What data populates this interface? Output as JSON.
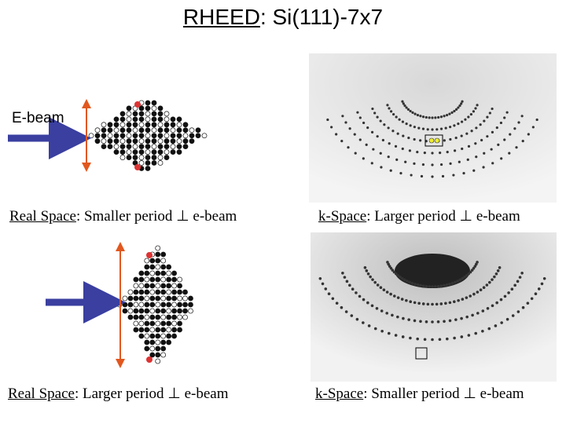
{
  "title": {
    "underlined": "RHEED",
    "rest": ": Si(111)-7x7"
  },
  "beam_label": "E-beam",
  "captions": [
    {
      "underlined": "Real Space",
      "rest": ": Smaller period ⊥ e-beam"
    },
    {
      "underlined": "k-Space",
      "rest": ": Larger period ⊥ e-beam"
    },
    {
      "underlined": "Real Space",
      "rest": ": Larger period ⊥ e-beam"
    },
    {
      "underlined": "k-Space",
      "rest": ": Smaller period ⊥ e-beam"
    }
  ]
}
